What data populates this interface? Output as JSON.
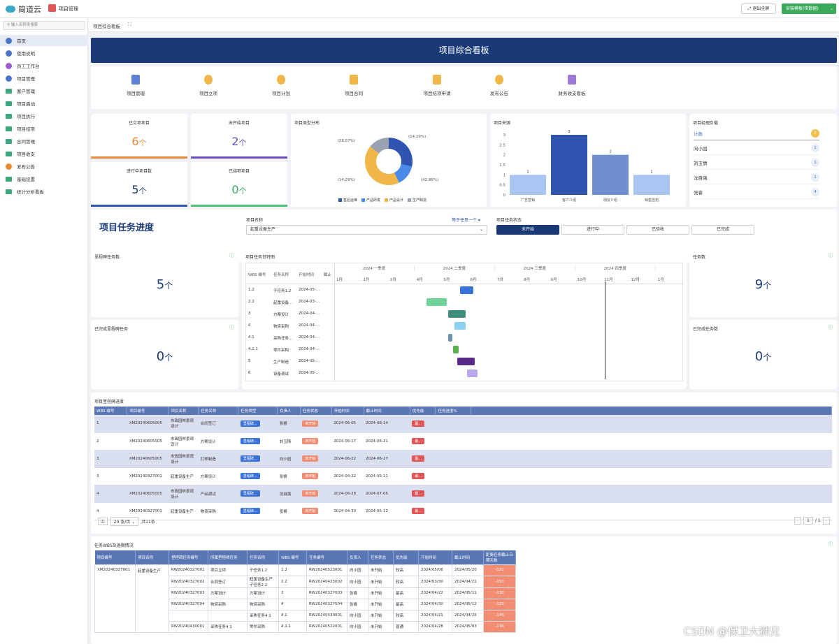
{
  "header": {
    "brand": "简道云",
    "app": "项目管理",
    "exit": "退出全屏",
    "install": "安装模板(带数据)"
  },
  "sidebar": {
    "search_placeholder": "输入名称来搜索",
    "items": [
      "首页",
      "使用说明",
      "员工工作台",
      "项目管理",
      "客户管理",
      "项目启动",
      "项目执行",
      "项目结项",
      "合同管理",
      "项目收支",
      "发布公告",
      "基础设置",
      "统计分析看板"
    ]
  },
  "tab": {
    "title": "项目综合看板"
  },
  "banner": {
    "title": "项目综合看板"
  },
  "quick": [
    "项目管理",
    "项目立项",
    "项目计划",
    "项目合同",
    "项目结项申请",
    "发布公告",
    "财务收支看板"
  ],
  "stats": {
    "established": {
      "label": "已立项项目",
      "value": "6",
      "unit": "个"
    },
    "not_started": {
      "label": "未开始项目",
      "value": "2",
      "unit": "个"
    },
    "in_progress": {
      "label": "进行中项目数",
      "value": "5",
      "unit": "个"
    },
    "closed": {
      "label": "已结项项目",
      "value": "0",
      "unit": "个"
    }
  },
  "chart_data": [
    {
      "type": "pie",
      "title": "项目类型分布",
      "categories": [
        "售后运维",
        "产品研发",
        "产品设计",
        "生产制造"
      ],
      "values": [
        28.57,
        14.29,
        42.86,
        14.29
      ],
      "labels": [
        "(28.57%)",
        "(14.29%)",
        "(42.86%)",
        "(14.29%)"
      ]
    },
    {
      "type": "bar",
      "title": "项目来源",
      "categories": [
        "广告营销",
        "客户介绍",
        "朋友介绍",
        "销售自拓"
      ],
      "values": [
        1,
        3,
        2,
        1
      ],
      "ylim": [
        0,
        3
      ],
      "yticks": [
        "3",
        "2.5",
        "2",
        "1.5",
        "1",
        "0.5",
        "0"
      ]
    }
  ],
  "workload": {
    "title": "项目经理负载",
    "rows": [
      {
        "name": "计数",
        "count": "7"
      },
      {
        "name": "向小园",
        "count": "1"
      },
      {
        "name": "刘玉情",
        "count": "1"
      },
      {
        "name": "沈自强",
        "count": "1"
      },
      {
        "name": "张睿",
        "count": "4"
      }
    ]
  },
  "filter": {
    "title": "项目任务进度",
    "project_label": "项目名称",
    "project_value": "起重设备生产",
    "equal_any": "等于任意一个",
    "status_label": "项目任务状态",
    "statuses": [
      "未开始",
      "进行中",
      "已验收",
      "已完成"
    ]
  },
  "milestone": {
    "title": "里程碑任务数",
    "value": "5",
    "unit": "个",
    "done_title": "已完成里程碑任务",
    "done_value": "0",
    "done_unit": "个"
  },
  "tasks": {
    "title": "任务数",
    "value": "9",
    "unit": "个",
    "done_title": "已完成任务数",
    "done_value": "0",
    "done_unit": "个"
  },
  "gantt": {
    "title": "项目任务甘特图",
    "cols": [
      "WBS 编号",
      "任务名称",
      "开始时间",
      "截止"
    ],
    "quarters": [
      "2024 一季度",
      "2024 二季度",
      "2024 三季度",
      "2024 四季度"
    ],
    "months": [
      "1月",
      "2月",
      "3月",
      "4月",
      "5月",
      "6月",
      "7月",
      "8月",
      "9月",
      "10月",
      "11月",
      "12月",
      "1月"
    ],
    "rows": [
      {
        "wbs": "1.2",
        "name": "子任务1.2",
        "start": "2024-05-..."
      },
      {
        "wbs": "2.2",
        "name": "起重设备...",
        "start": "2024-03-..."
      },
      {
        "wbs": "3",
        "name": "方案设计",
        "start": "2024-04-..."
      },
      {
        "wbs": "4",
        "name": "物资采购",
        "start": "2024-04-..."
      },
      {
        "wbs": "4.1",
        "name": "采购任务...",
        "start": "2024-04-..."
      },
      {
        "wbs": "4.1.1",
        "name": "零件采购",
        "start": "2024-04-..."
      },
      {
        "wbs": "5",
        "name": "生产制造",
        "start": "2024-05-..."
      },
      {
        "wbs": "6",
        "name": "设备调试",
        "start": "2024-05-..."
      }
    ],
    "bars": [
      {
        "start": 4.7,
        "end": 5.2,
        "color": "#3a72d8"
      },
      {
        "start": 3.45,
        "end": 4.2,
        "color": "#6fd39a"
      },
      {
        "start": 4.25,
        "end": 4.9,
        "color": "#3f8f7a"
      },
      {
        "start": 4.5,
        "end": 4.9,
        "color": "#8ad0f0"
      },
      {
        "start": 4.25,
        "end": 4.4,
        "color": "#6a94b8"
      },
      {
        "start": 4.45,
        "end": 4.65,
        "color": "#5ab04a"
      },
      {
        "start": 4.6,
        "end": 5.25,
        "color": "#5a2a8a"
      },
      {
        "start": 4.95,
        "end": 5.35,
        "color": "#b9a8ee"
      }
    ]
  },
  "ms_table": {
    "title": "项目里程碑进度",
    "cols": [
      "WBS 编号",
      "项目编号",
      "项目名称",
      "任务名称",
      "任务类型",
      "负责人",
      "任务状态",
      "开始时间",
      "截止时间",
      "优先级",
      "任务进度%"
    ],
    "rows": [
      [
        "1",
        "XM20240605005",
        "市政园林景观设计",
        "合同签订",
        "里程碑...",
        "张睿",
        "未开始",
        "2024-06-05",
        "2024-06-14",
        "最...",
        ""
      ],
      [
        "2",
        "XM20240605005",
        "市政园林景观设计",
        "方案设计",
        "里程碑...",
        "刘玉情",
        "未开始",
        "2024-06-17",
        "2024-06-21",
        "最...",
        ""
      ],
      [
        "3",
        "XM20240605005",
        "市政园林景观设计",
        "打样制造",
        "里程碑...",
        "向小园",
        "未开始",
        "2024-06-22",
        "2024-06-27",
        "最...",
        ""
      ],
      [
        "3",
        "XM20240327001",
        "起重设备生产",
        "方案设计",
        "里程碑...",
        "张睿",
        "未开始",
        "2024-04-22",
        "2024-05-11",
        "最...",
        ""
      ],
      [
        "4",
        "XM20240605005",
        "市政园林景观设计",
        "产品调试",
        "里程碑...",
        "沈自强",
        "未开始",
        "2024-06-28",
        "2024-07-05",
        "最...",
        ""
      ],
      [
        "4",
        "XM20240327001",
        "起重设备生产",
        "物资采购",
        "里程碑...",
        "张睿",
        "未开始",
        "2024-04-30",
        "2024-05-12",
        "最...",
        ""
      ]
    ],
    "page_size": "20 条/页",
    "total": "共11条",
    "page": "1",
    "pages": "/ 1"
  },
  "wbs_table": {
    "title": "任务WBS及逾期情况",
    "cols": [
      "项目编号",
      "项目名称",
      "里程碑任务编号",
      "所属里程碑任务",
      "任务名称",
      "WBS 编号",
      "任务编号",
      "负责人",
      "任务状态",
      "优先级",
      "开始时间",
      "截止时间",
      "距离任务截止日期天数"
    ],
    "project": "XM20240327001",
    "project_name": "起重设备生产",
    "rows": [
      [
        "RW20240327001",
        "项目立项",
        "子任务1.2",
        "1.2",
        "RW20240523001",
        "向小园",
        "未开始",
        "较高",
        "2024/05/06",
        "2024/05/20",
        "-121"
      ],
      [
        "RW20240327002",
        "合同签订",
        "起重设备生产 子任务2.2",
        "2.2",
        "RW20240423002",
        "向小园",
        "未开始",
        "较高",
        "2024/03/30",
        "2024/04/21",
        "-150"
      ],
      [
        "RW20240327003",
        "方案设计",
        "方案设计",
        "3",
        "RW20240327003",
        "张睿",
        "未开始",
        "最高",
        "2024/04/22",
        "2024/05/11",
        "-130"
      ],
      [
        "RW20240327004",
        "物资采购",
        "物资采购",
        "4",
        "RW20240327004",
        "张睿",
        "未开始",
        "最高",
        "2024/04/30",
        "2024/05/12",
        "-129"
      ],
      [
        "",
        "",
        "采购任务4.1",
        "4.1",
        "RW20240430001",
        "向小园",
        "未开始",
        "较高",
        "2024/04/21",
        "2024/04/25",
        "-146"
      ],
      [
        "RW20240430001",
        "采购任务4.1",
        "零件采购",
        "4.1.1",
        "RW20240522001",
        "向小园",
        "未开始",
        "普通",
        "2024/04/28",
        "2024/05/03",
        "-138"
      ]
    ]
  },
  "watermark": "CSDN @保卫大狮兄"
}
